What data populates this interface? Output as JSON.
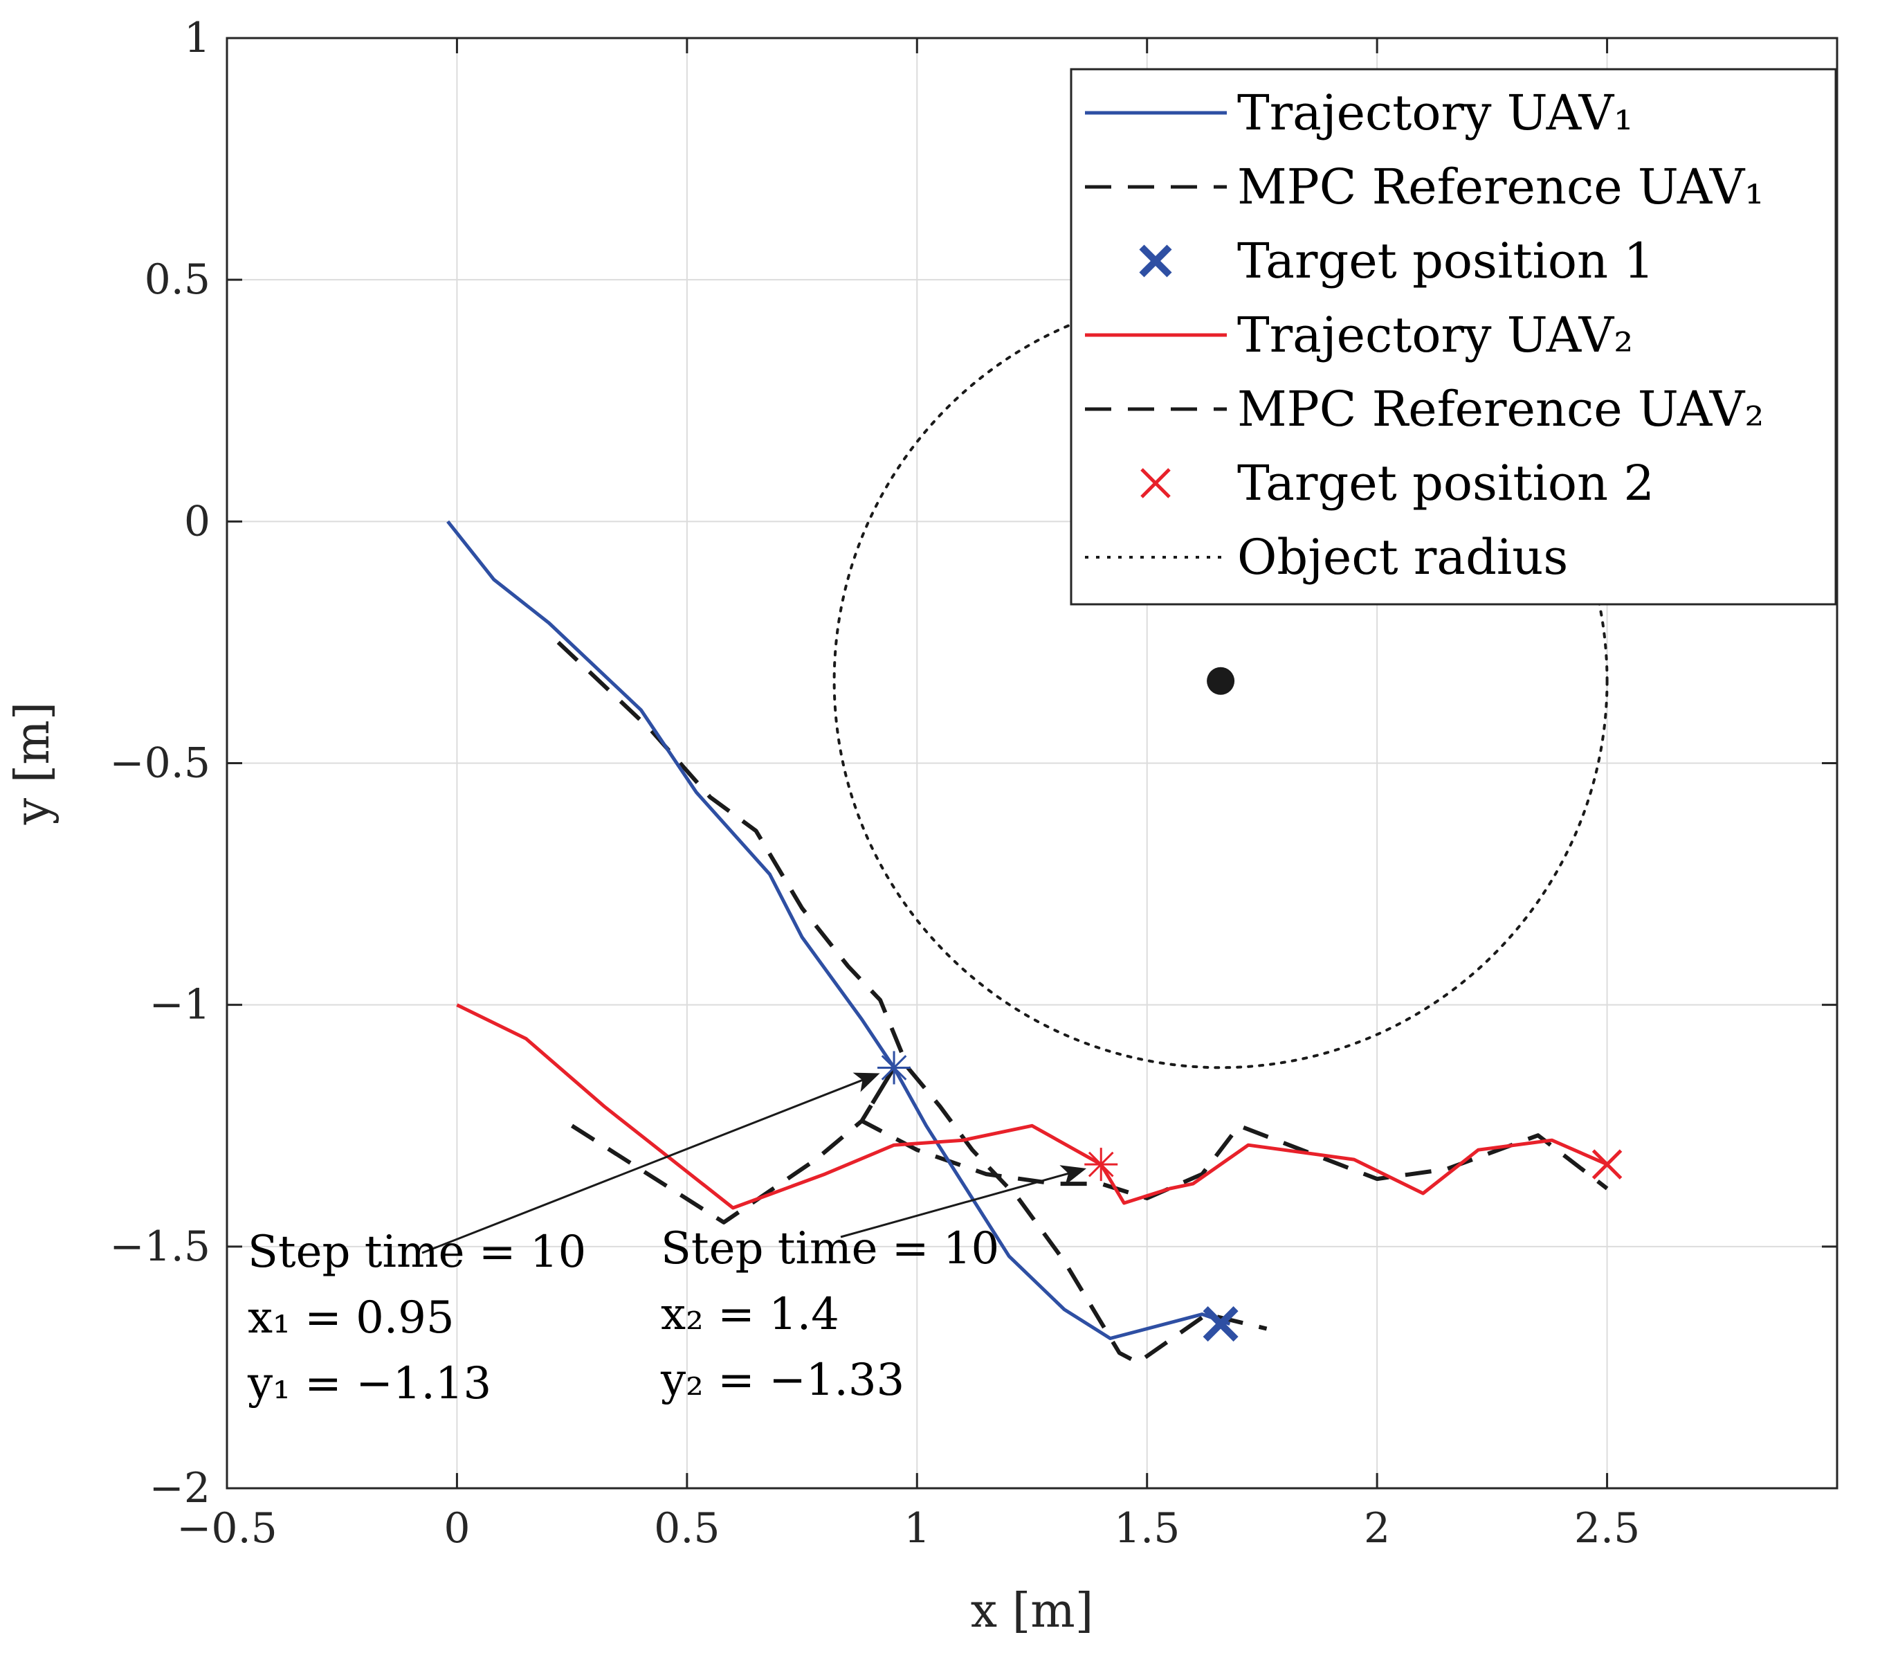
{
  "chart_data": {
    "type": "line",
    "title": "",
    "xlabel": "x [m]",
    "ylabel": "y [m]",
    "xlim": [
      -0.5,
      3.0
    ],
    "ylim": [
      -2,
      1
    ],
    "x_ticks": [
      -0.5,
      0,
      0.5,
      1,
      1.5,
      2,
      2.5
    ],
    "x_tick_labels": [
      "−0.5",
      "0",
      "0.5",
      "1",
      "1.5",
      "2",
      "2.5"
    ],
    "y_ticks": [
      -2,
      -1.5,
      -1,
      -0.5,
      0,
      0.5,
      1
    ],
    "y_tick_labels": [
      "−2",
      "−1.5",
      "−1",
      "−0.5",
      "0",
      "0.5",
      "1"
    ],
    "grid": true,
    "legend_position": "top-right",
    "colors": {
      "uav1": "#2e4fa3",
      "uav2": "#e8212a",
      "reference": "#1a1a1a",
      "object": "#1a1a1a"
    },
    "series": [
      {
        "name": "Trajectory UAV₁",
        "style": "solid",
        "color": "#2e4fa3",
        "points": [
          [
            -0.02,
            0.0
          ],
          [
            0.08,
            -0.12
          ],
          [
            0.2,
            -0.21
          ],
          [
            0.4,
            -0.39
          ],
          [
            0.52,
            -0.56
          ],
          [
            0.68,
            -0.73
          ],
          [
            0.75,
            -0.86
          ],
          [
            0.88,
            -1.03
          ],
          [
            0.95,
            -1.13
          ],
          [
            1.02,
            -1.25
          ],
          [
            1.1,
            -1.37
          ],
          [
            1.2,
            -1.52
          ],
          [
            1.32,
            -1.63
          ],
          [
            1.42,
            -1.69
          ],
          [
            1.62,
            -1.64
          ],
          [
            1.68,
            -1.66
          ]
        ]
      },
      {
        "name": "MPC Reference UAV₁",
        "style": "dashed",
        "color": "#1a1a1a",
        "points": [
          [
            0.22,
            -0.25
          ],
          [
            0.42,
            -0.43
          ],
          [
            0.55,
            -0.57
          ],
          [
            0.65,
            -0.64
          ],
          [
            0.75,
            -0.8
          ],
          [
            0.85,
            -0.92
          ],
          [
            0.92,
            -0.99
          ],
          [
            0.98,
            -1.13
          ],
          [
            1.05,
            -1.21
          ],
          [
            1.12,
            -1.3
          ],
          [
            1.22,
            -1.4
          ],
          [
            1.32,
            -1.53
          ],
          [
            1.44,
            -1.72
          ],
          [
            1.48,
            -1.74
          ],
          [
            1.63,
            -1.64
          ],
          [
            1.76,
            -1.67
          ]
        ]
      },
      {
        "name": "Target position 1",
        "marker": "x",
        "color": "#2e4fa3",
        "points": [
          [
            1.66,
            -1.66
          ]
        ]
      },
      {
        "name": "Trajectory UAV₂",
        "style": "solid",
        "color": "#e8212a",
        "points": [
          [
            0.0,
            -1.0
          ],
          [
            0.15,
            -1.07
          ],
          [
            0.32,
            -1.21
          ],
          [
            0.6,
            -1.42
          ],
          [
            0.8,
            -1.35
          ],
          [
            0.95,
            -1.29
          ],
          [
            1.1,
            -1.28
          ],
          [
            1.25,
            -1.25
          ],
          [
            1.4,
            -1.33
          ],
          [
            1.45,
            -1.41
          ],
          [
            1.55,
            -1.38
          ],
          [
            1.6,
            -1.37
          ],
          [
            1.72,
            -1.29
          ],
          [
            1.95,
            -1.32
          ],
          [
            2.1,
            -1.39
          ],
          [
            2.22,
            -1.3
          ],
          [
            2.38,
            -1.28
          ],
          [
            2.5,
            -1.33
          ]
        ]
      },
      {
        "name": "MPC Reference UAV₂",
        "style": "dashed",
        "color": "#1a1a1a",
        "points": [
          [
            0.25,
            -1.25
          ],
          [
            0.58,
            -1.45
          ],
          [
            0.78,
            -1.32
          ],
          [
            0.88,
            -1.24
          ],
          [
            0.95,
            -1.13
          ],
          [
            0.88,
            -1.24
          ],
          [
            1.0,
            -1.3
          ],
          [
            1.15,
            -1.35
          ],
          [
            1.3,
            -1.37
          ],
          [
            1.4,
            -1.37
          ],
          [
            1.5,
            -1.4
          ],
          [
            1.62,
            -1.35
          ],
          [
            1.7,
            -1.25
          ],
          [
            2.0,
            -1.36
          ],
          [
            2.15,
            -1.34
          ],
          [
            2.35,
            -1.27
          ],
          [
            2.5,
            -1.38
          ]
        ]
      },
      {
        "name": "Target position 2",
        "marker": "x",
        "color": "#e8212a",
        "points": [
          [
            2.5,
            -1.33
          ]
        ]
      },
      {
        "name": "Object radius",
        "style": "dotted",
        "color": "#1a1a1a",
        "circle": {
          "cx": 1.66,
          "cy": -0.33,
          "r": 0.84
        }
      }
    ],
    "object_center": [
      1.66,
      -0.33
    ],
    "annotations": [
      {
        "lines": [
          "Step time = 10",
          "x₁ = 0.95",
          "y₁ = −1.13"
        ],
        "point": [
          0.95,
          -1.13
        ],
        "color": "#2e4fa3"
      },
      {
        "lines": [
          "Step time = 10",
          "x₂ = 1.4",
          "y₂ = −1.33"
        ],
        "point": [
          1.4,
          -1.33
        ],
        "color": "#e8212a"
      }
    ]
  }
}
